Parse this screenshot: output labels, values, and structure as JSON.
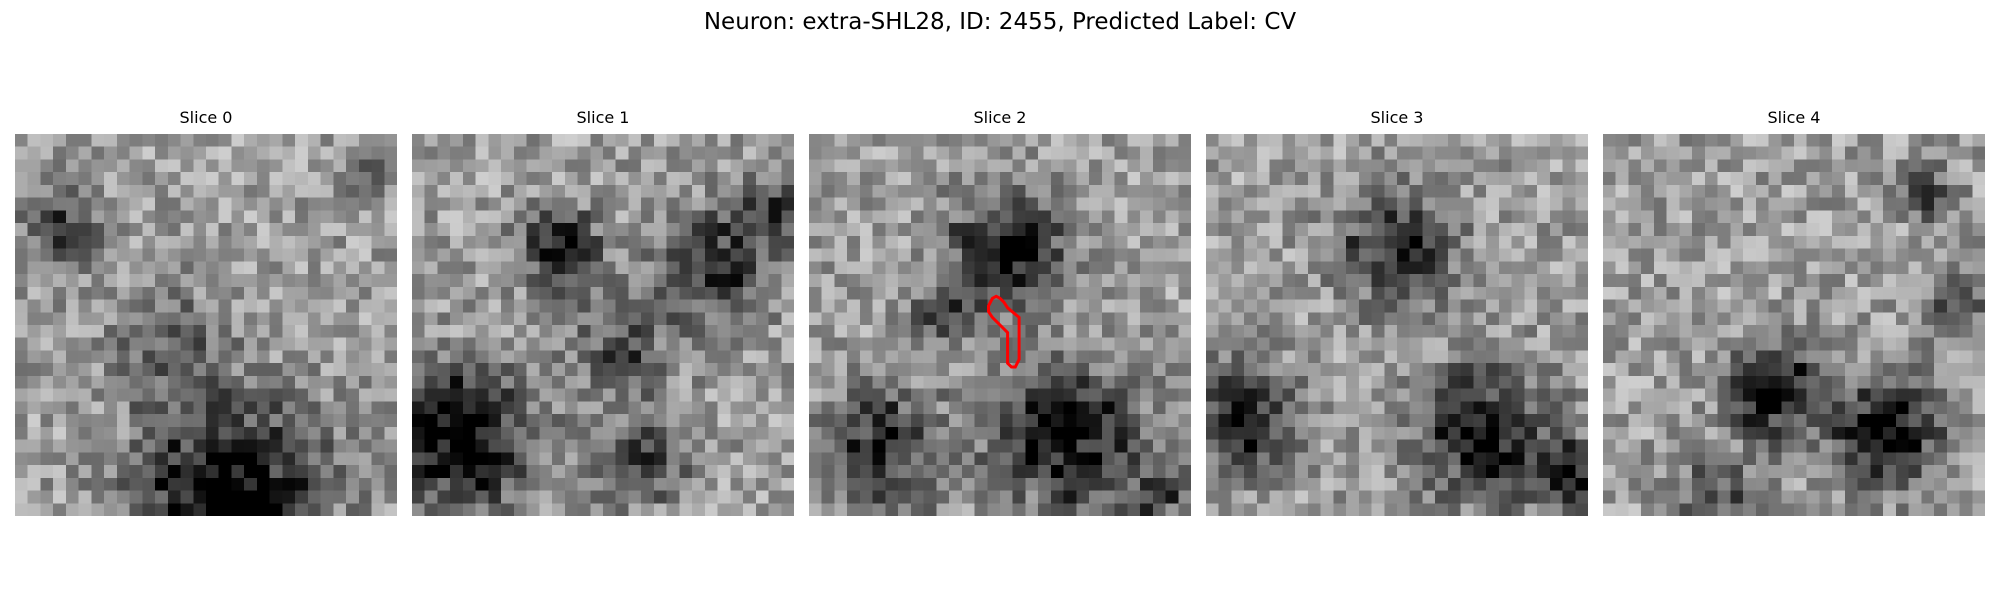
{
  "figure": {
    "title": "Neuron: extra-SHL28, ID: 2455, Predicted Label: CV"
  },
  "panels": [
    {
      "title": "Slice 0",
      "seed": 11,
      "blobs": [
        [
          0.57,
          0.93,
          0.16,
          0.7
        ],
        [
          0.12,
          0.25,
          0.08,
          0.35
        ],
        [
          0.92,
          0.1,
          0.05,
          0.3
        ],
        [
          0.4,
          0.55,
          0.1,
          0.25
        ]
      ]
    },
    {
      "title": "Slice 1",
      "seed": 23,
      "blobs": [
        [
          0.13,
          0.8,
          0.12,
          0.75
        ],
        [
          0.39,
          0.3,
          0.07,
          0.55
        ],
        [
          0.8,
          0.35,
          0.1,
          0.45
        ],
        [
          0.6,
          0.85,
          0.08,
          0.4
        ],
        [
          0.55,
          0.55,
          0.1,
          0.3
        ],
        [
          0.95,
          0.2,
          0.06,
          0.35
        ]
      ]
    },
    {
      "title": "Slice 2",
      "seed": 37,
      "blobs": [
        [
          0.52,
          0.3,
          0.1,
          0.65
        ],
        [
          0.68,
          0.8,
          0.12,
          0.7
        ],
        [
          0.2,
          0.82,
          0.11,
          0.45
        ],
        [
          0.35,
          0.47,
          0.06,
          0.3
        ],
        [
          0.92,
          0.95,
          0.05,
          0.4
        ]
      ]
    },
    {
      "title": "Slice 3",
      "seed": 51,
      "blobs": [
        [
          0.5,
          0.3,
          0.1,
          0.5
        ],
        [
          0.72,
          0.78,
          0.12,
          0.6
        ],
        [
          0.1,
          0.75,
          0.1,
          0.5
        ],
        [
          0.95,
          0.9,
          0.06,
          0.5
        ]
      ]
    },
    {
      "title": "Slice 4",
      "seed": 67,
      "blobs": [
        [
          0.45,
          0.68,
          0.08,
          0.65
        ],
        [
          0.75,
          0.78,
          0.09,
          0.7
        ],
        [
          0.92,
          0.45,
          0.06,
          0.35
        ],
        [
          0.85,
          0.15,
          0.05,
          0.35
        ],
        [
          0.3,
          0.95,
          0.08,
          0.3
        ]
      ]
    }
  ],
  "mask": {
    "panel": 2,
    "color": "#ff0000",
    "outline": [
      [
        0.49,
        0.425
      ],
      [
        0.5,
        0.43
      ],
      [
        0.51,
        0.44
      ],
      [
        0.52,
        0.455
      ],
      [
        0.55,
        0.48
      ],
      [
        0.55,
        0.59
      ],
      [
        0.54,
        0.61
      ],
      [
        0.53,
        0.61
      ],
      [
        0.52,
        0.6
      ],
      [
        0.52,
        0.52
      ],
      [
        0.5,
        0.5
      ],
      [
        0.48,
        0.48
      ],
      [
        0.47,
        0.465
      ],
      [
        0.47,
        0.45
      ],
      [
        0.48,
        0.43
      ]
    ]
  }
}
